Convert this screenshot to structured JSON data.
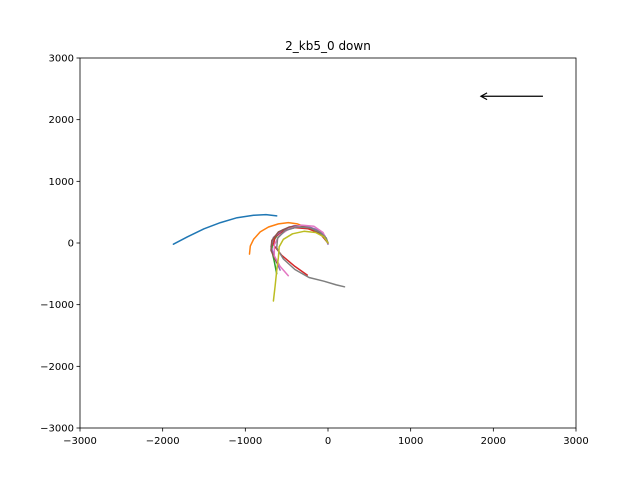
{
  "chart_data": {
    "type": "line",
    "title": "2_kb5_0 down",
    "xlabel": "",
    "ylabel": "",
    "xlim": [
      -3000,
      3000
    ],
    "ylim": [
      -3000,
      3000
    ],
    "xticks": [
      -3000,
      -2000,
      -1000,
      0,
      1000,
      2000,
      3000
    ],
    "yticks": [
      -3000,
      -2000,
      -1000,
      0,
      1000,
      2000,
      3000
    ],
    "xtick_labels": [
      "−3000",
      "−2000",
      "−1000",
      "0",
      "1000",
      "2000",
      "3000"
    ],
    "ytick_labels": [
      "−3000",
      "−2000",
      "−1000",
      "0",
      "1000",
      "2000",
      "3000"
    ],
    "grid": false,
    "legend": "none",
    "series": [
      {
        "color": "#1f77b4",
        "points": [
          [
            -1870,
            -20
          ],
          [
            -1700,
            100
          ],
          [
            -1500,
            230
          ],
          [
            -1300,
            330
          ],
          [
            -1100,
            410
          ],
          [
            -900,
            450
          ],
          [
            -750,
            460
          ],
          [
            -620,
            440
          ]
        ]
      },
      {
        "color": "#ff7f0e",
        "points": [
          [
            -950,
            -180
          ],
          [
            -940,
            -50
          ],
          [
            -900,
            60
          ],
          [
            -820,
            180
          ],
          [
            -720,
            260
          ],
          [
            -600,
            310
          ],
          [
            -480,
            330
          ],
          [
            -370,
            310
          ],
          [
            -290,
            270
          ]
        ]
      },
      {
        "color": "#2ca02c",
        "points": [
          [
            -620,
            -500
          ],
          [
            -650,
            -300
          ],
          [
            -680,
            -120
          ],
          [
            -670,
            20
          ],
          [
            -600,
            150
          ],
          [
            -470,
            240
          ],
          [
            -320,
            260
          ],
          [
            -170,
            220
          ],
          [
            -60,
            140
          ],
          [
            0,
            0
          ]
        ]
      },
      {
        "color": "#d62728",
        "points": [
          [
            -250,
            -520
          ],
          [
            -400,
            -380
          ],
          [
            -560,
            -200
          ],
          [
            -660,
            -30
          ],
          [
            -640,
            100
          ],
          [
            -540,
            200
          ],
          [
            -400,
            250
          ],
          [
            -240,
            230
          ],
          [
            -100,
            160
          ],
          [
            0,
            0
          ]
        ]
      },
      {
        "color": "#9467bd",
        "points": [
          [
            -580,
            -440
          ],
          [
            -640,
            -250
          ],
          [
            -690,
            -60
          ],
          [
            -660,
            90
          ],
          [
            -550,
            210
          ],
          [
            -410,
            280
          ],
          [
            -270,
            280
          ],
          [
            -140,
            220
          ],
          [
            -40,
            120
          ],
          [
            0,
            -20
          ]
        ]
      },
      {
        "color": "#8c564b",
        "points": [
          [
            -620,
            -320
          ],
          [
            -690,
            -120
          ],
          [
            -680,
            40
          ],
          [
            -600,
            180
          ],
          [
            -470,
            260
          ],
          [
            -330,
            280
          ],
          [
            -190,
            230
          ],
          [
            -80,
            140
          ],
          [
            0,
            0
          ]
        ]
      },
      {
        "color": "#e377c2",
        "points": [
          [
            -480,
            -530
          ],
          [
            -580,
            -380
          ],
          [
            -650,
            -210
          ],
          [
            -650,
            -30
          ],
          [
            -590,
            120
          ],
          [
            -470,
            230
          ],
          [
            -320,
            290
          ],
          [
            -170,
            270
          ],
          [
            -60,
            170
          ],
          [
            0,
            0
          ]
        ]
      },
      {
        "color": "#7f7f7f",
        "points": [
          [
            200,
            -710
          ],
          [
            100,
            -680
          ],
          [
            -50,
            -620
          ],
          [
            -230,
            -560
          ],
          [
            -400,
            -430
          ],
          [
            -540,
            -260
          ],
          [
            -620,
            -80
          ],
          [
            -610,
            80
          ],
          [
            -520,
            200
          ],
          [
            -380,
            260
          ],
          [
            -230,
            250
          ],
          [
            -100,
            180
          ],
          [
            -20,
            80
          ],
          [
            0,
            0
          ]
        ]
      },
      {
        "color": "#bcbd22",
        "points": [
          [
            -660,
            -940
          ],
          [
            -640,
            -700
          ],
          [
            -620,
            -450
          ],
          [
            -600,
            -230
          ],
          [
            -590,
            -60
          ],
          [
            -540,
            60
          ],
          [
            -430,
            150
          ],
          [
            -290,
            190
          ],
          [
            -150,
            170
          ],
          [
            -50,
            100
          ],
          [
            0,
            0
          ]
        ]
      }
    ],
    "annotations": [
      {
        "type": "arrow",
        "from": [
          2600,
          2380
        ],
        "to": [
          1850,
          2380
        ],
        "color": "#000000"
      }
    ]
  }
}
